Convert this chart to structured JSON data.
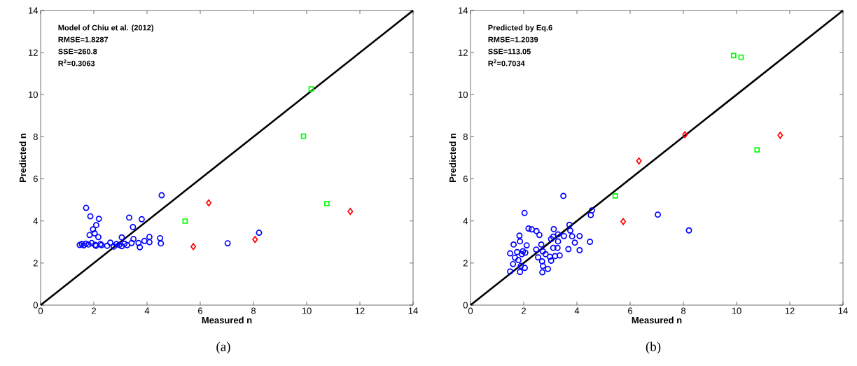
{
  "chart_data": [
    {
      "type": "scatter",
      "xlabel": "Measured n",
      "ylabel": "Predicted n",
      "xlim": [
        0,
        14
      ],
      "ylim": [
        0,
        14
      ],
      "xticks": [
        0,
        2,
        4,
        6,
        8,
        10,
        12,
        14
      ],
      "yticks": [
        0,
        2,
        4,
        6,
        8,
        10,
        12,
        14
      ],
      "grid": false,
      "annotations": [
        "Model of Chiu et al. (2012)",
        "RMSE=1.8287",
        "SSE=260.8",
        "R$^{2}$=0.3063",
        "(a)"
      ],
      "series": [
        {
          "type": "line",
          "color": "#000000",
          "x": [
            0,
            14
          ],
          "values": [
            0,
            14
          ]
        },
        {
          "marker": "circle",
          "color": "#0000ff",
          "x": [
            4.55,
            1.71,
            1.87,
            2.19,
            3.33,
            3.8,
            2.09,
            1.97,
            3.47,
            2.03,
            1.84,
            2.17,
            3.05,
            4.09,
            4.49,
            4.52,
            4.09,
            3.9,
            3.49,
            3.68,
            3.73,
            3.42,
            1.47,
            1.55,
            1.62,
            1.7,
            1.8,
            1.92,
            2.05,
            2.25,
            2.5,
            2.62,
            2.75,
            2.85,
            2.95,
            3.05,
            3.15,
            3.25,
            2.08,
            2.29,
            7.03,
            8.21
          ],
          "values": [
            5.22,
            4.62,
            4.22,
            4.1,
            4.16,
            4.08,
            3.8,
            3.6,
            3.71,
            3.41,
            3.33,
            3.23,
            3.22,
            3.24,
            3.18,
            2.93,
            2.99,
            3.05,
            3.14,
            2.95,
            2.75,
            2.95,
            2.86,
            2.9,
            2.84,
            2.92,
            2.88,
            2.95,
            2.86,
            2.9,
            2.82,
            2.97,
            2.78,
            2.9,
            2.86,
            2.8,
            2.92,
            2.85,
            2.82,
            2.85,
            2.94,
            3.44
          ]
        },
        {
          "marker": "diamond",
          "color": "#ff0000",
          "x": [
            5.74,
            6.32,
            8.06,
            11.64
          ],
          "values": [
            2.78,
            4.86,
            3.12,
            4.45
          ]
        },
        {
          "marker": "square",
          "color": "#00ff00",
          "x": [
            5.43,
            10.17,
            9.88,
            10.76
          ],
          "values": [
            3.99,
            10.27,
            8.03,
            4.83
          ]
        }
      ]
    },
    {
      "type": "scatter",
      "xlabel": "Measured n",
      "ylabel": "Predicted n",
      "xlim": [
        0,
        14
      ],
      "ylim": [
        0,
        14
      ],
      "xticks": [
        0,
        2,
        4,
        6,
        8,
        10,
        12,
        14
      ],
      "yticks": [
        0,
        2,
        4,
        6,
        8,
        10,
        12,
        14
      ],
      "grid": false,
      "annotations": [
        "Predicted by Eq.6",
        "RMSE=1.2039",
        "SSE=113.05",
        "R$^{2}$=0.7034",
        "(b)"
      ],
      "series": [
        {
          "type": "line",
          "color": "#000000",
          "x": [
            0,
            14
          ],
          "values": [
            0,
            14
          ]
        },
        {
          "marker": "circle",
          "color": "#0000ff",
          "x": [
            3.49,
            2.03,
            2.18,
            2.3,
            2.48,
            2.59,
            1.84,
            3.13,
            3.72,
            4.56,
            4.52,
            3.75,
            3.11,
            3.29,
            3.51,
            3.82,
            4.1,
            3.92,
            4.49,
            4.1,
            3.68,
            3.29,
            3.11,
            3.27,
            3.03,
            1.86,
            1.62,
            2.11,
            2.66,
            2.47,
            1.49,
            1.75,
            1.97,
            2.06,
            1.93,
            2.72,
            2.82,
            2.54,
            2.69,
            2.98,
            3.18,
            3.35,
            3.03,
            1.67,
            1.8,
            1.6,
            1.89,
            2.04,
            1.49,
            1.86,
            2.72,
            2.91,
            2.7,
            7.04,
            8.21
          ],
          "values": [
            5.19,
            4.38,
            3.64,
            3.6,
            3.52,
            3.33,
            3.3,
            3.61,
            3.82,
            4.5,
            4.28,
            3.54,
            3.25,
            3.36,
            3.28,
            3.27,
            3.28,
            2.97,
            3.01,
            2.61,
            2.66,
            3.03,
            2.72,
            2.72,
            3.14,
            3.03,
            2.88,
            2.84,
            2.88,
            2.64,
            2.46,
            2.52,
            2.56,
            2.49,
            2.42,
            2.55,
            2.42,
            2.27,
            2.08,
            2.3,
            2.33,
            2.36,
            2.11,
            2.25,
            2.14,
            1.95,
            1.86,
            1.77,
            1.6,
            1.58,
            1.86,
            1.72,
            1.56,
            4.3,
            3.55
          ]
        },
        {
          "marker": "diamond",
          "color": "#ff0000",
          "x": [
            5.74,
            6.33,
            8.06,
            11.64
          ],
          "values": [
            3.97,
            6.85,
            8.1,
            8.07
          ]
        },
        {
          "marker": "square",
          "color": "#00ff00",
          "x": [
            9.89,
            10.17,
            10.77,
            5.44
          ],
          "values": [
            11.86,
            11.78,
            7.38,
            5.19
          ]
        }
      ]
    }
  ]
}
